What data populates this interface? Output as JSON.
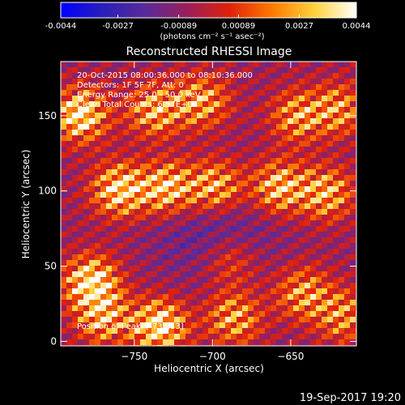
{
  "colorbar": {
    "ticks": [
      "-0.0044",
      "-0.0027",
      "-0.00089",
      "0.00089",
      "0.0027",
      "0.0044"
    ],
    "tick_values": [
      -0.0044,
      -0.0027,
      -0.00089,
      0.00089,
      0.0027,
      0.0044
    ],
    "unit_label": "(photons cm⁻² s⁻¹ asec⁻²)",
    "range": [
      -0.0044,
      0.0044
    ],
    "colormap": [
      "#0000ff",
      "#2a1fb8",
      "#5a2a9a",
      "#9a1f5a",
      "#e0200a",
      "#ff7a00",
      "#ffd23a",
      "#ffffff"
    ]
  },
  "chart_data": {
    "type": "heatmap",
    "title": "Reconstructed RHESSI Image",
    "xlabel": "Heliocentric X (arcsec)",
    "ylabel": "Heliocentric Y (arcsec)",
    "xlim": [
      -797,
      -608
    ],
    "ylim": [
      -3,
      186
    ],
    "x_ticks": [
      -750,
      -700,
      -650
    ],
    "y_ticks": [
      0,
      50,
      100,
      150
    ],
    "info_lines": [
      "20-Oct-2015 08:00:36.000 to 08:10:36.000",
      "Detectors: 1F 5F 7F, Att: 0",
      "Energy Range: 25.0 - 50.0 keV",
      "Clean     Total Counts: 6.57E+03"
    ],
    "peak_annotation": "Position of Peak: [-735,13]",
    "peak": [
      -735,
      13
    ],
    "sources": [
      {
        "x": -785,
        "y": 151,
        "value": 0.0044
      },
      {
        "x": -738,
        "y": 154,
        "value": 0.0032
      },
      {
        "x": -708,
        "y": 160,
        "value": 0.003
      },
      {
        "x": -648,
        "y": 150,
        "value": 0.0028
      },
      {
        "x": -622,
        "y": 155,
        "value": 0.0026
      },
      {
        "x": -760,
        "y": 102,
        "value": 0.004
      },
      {
        "x": -730,
        "y": 103,
        "value": 0.0038
      },
      {
        "x": -700,
        "y": 104,
        "value": 0.0034
      },
      {
        "x": -660,
        "y": 104,
        "value": 0.0036
      },
      {
        "x": -630,
        "y": 100,
        "value": 0.0032
      },
      {
        "x": -778,
        "y": 42,
        "value": 0.0044
      },
      {
        "x": -735,
        "y": 13,
        "value": 0.0044
      },
      {
        "x": -770,
        "y": 18,
        "value": 0.003
      },
      {
        "x": -688,
        "y": 18,
        "value": 0.003
      },
      {
        "x": -645,
        "y": 35,
        "value": 0.0028
      },
      {
        "x": -620,
        "y": 20,
        "value": 0.0026
      },
      {
        "x": -690,
        "y": 55,
        "value": 0.0018
      }
    ]
  },
  "footer": {
    "timestamp": "19-Sep-2017 19:20"
  }
}
